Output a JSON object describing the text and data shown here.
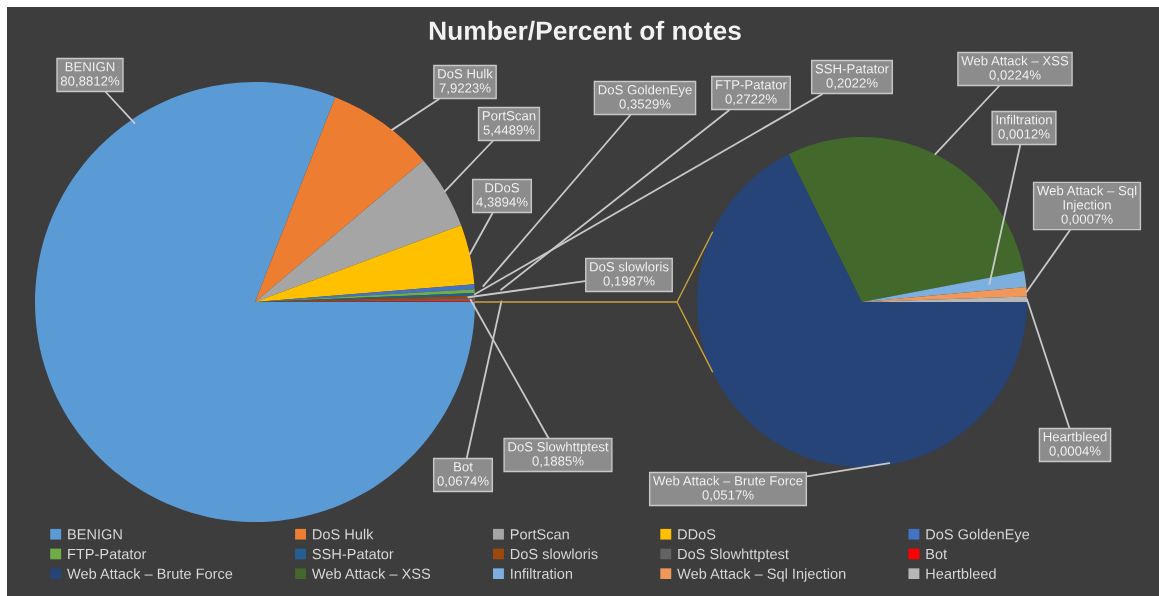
{
  "chart_data": [
    {
      "type": "pie",
      "title": "Number/Percent of notes",
      "categories": [
        "BENIGN",
        "DoS Hulk",
        "PortScan",
        "DDoS",
        "DoS GoldenEye",
        "FTP-Patator",
        "SSH-Patator",
        "DoS slowloris",
        "DoS Slowhttptest",
        "Bot"
      ],
      "values": [
        80.8812,
        7.9223,
        5.4489,
        4.3894,
        0.3529,
        0.2722,
        0.2022,
        0.1987,
        0.1885,
        0.0674
      ],
      "colors": [
        "#5b9bd5",
        "#ed7d31",
        "#a5a5a5",
        "#ffc000",
        "#4472c4",
        "#70ad47",
        "#255e91",
        "#9e480e",
        "#636363",
        "#ff0000"
      ],
      "value_labels": [
        "80,8812%",
        "7,9223%",
        "5,4489%",
        "4,3894%",
        "0,3529%",
        "0,2722%",
        "0,2022%",
        "0,1987%",
        "0,1885%",
        "0,0674%"
      ],
      "legend": "bottom"
    },
    {
      "type": "pie",
      "categories": [
        "Web Attack – Brute Force",
        "Web Attack – XSS",
        "Infiltration",
        "Web Attack – Sql Injection",
        "Heartbleed"
      ],
      "values": [
        0.0517,
        0.0224,
        0.0012,
        0.0007,
        0.0004
      ],
      "colors": [
        "#264478",
        "#43682b",
        "#7cafdd",
        "#f1975a",
        "#b7b7b7"
      ],
      "value_labels": [
        "0,0517%",
        "0,0224%",
        "0,0012%",
        "0,0007%",
        "0,0004%"
      ],
      "legend": "bottom"
    }
  ]
}
